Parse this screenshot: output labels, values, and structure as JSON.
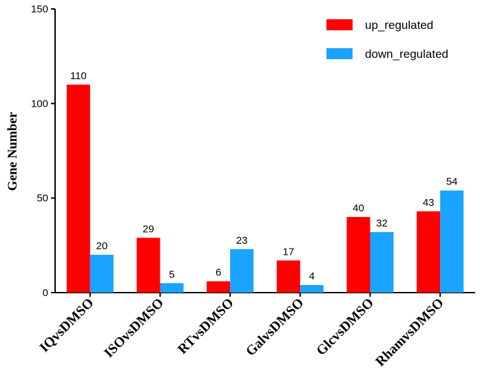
{
  "chart_data": {
    "type": "bar",
    "title": "",
    "xlabel": "",
    "ylabel": "Gene Number",
    "ylim": [
      0,
      150
    ],
    "yticks": [
      0,
      50,
      100,
      150
    ],
    "categories": [
      "IQvsDMSO",
      "ISOvsDMSO",
      "RTvsDMSO",
      "GalvsDMSO",
      "GlcvsDMSO",
      "RhamvsDMSO"
    ],
    "series": [
      {
        "name": "up_regulated",
        "color": "#ff0000",
        "values": [
          110,
          29,
          6,
          17,
          40,
          43
        ]
      },
      {
        "name": "down_regulated",
        "color": "#1aa3ff",
        "values": [
          20,
          5,
          23,
          4,
          32,
          54
        ]
      }
    ],
    "grid": false,
    "legend_position": "top-right",
    "data_labels": true
  }
}
